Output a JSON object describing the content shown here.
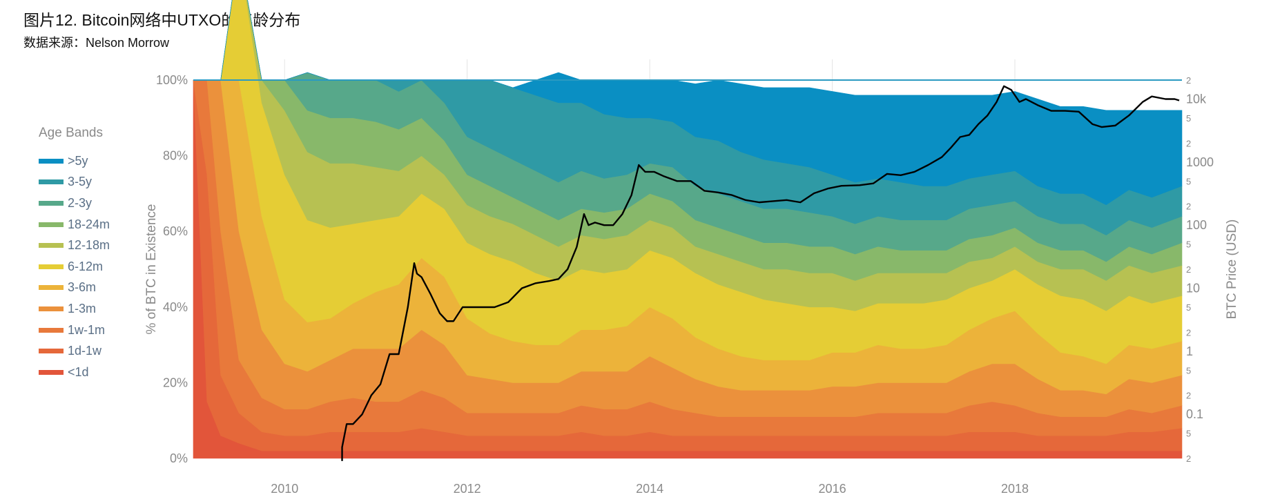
{
  "header": {
    "title": "图片12. Bitcoin网络中UTXO的年龄分布",
    "source": "数据来源：Nelson Morrow"
  },
  "chart_data": {
    "type": "area",
    "stacked": true,
    "x_unit": "year",
    "xlim": [
      2009.0,
      2019.83
    ],
    "ylim": [
      0,
      100
    ],
    "ylabel": "% of BTC in Existence",
    "y2label": "BTC Price (USD)",
    "y2_scale": "log",
    "y2lim": [
      0.02,
      20000
    ],
    "x_ticks": [
      "2010",
      "2012",
      "2014",
      "2016",
      "2018"
    ],
    "x_tick_values": [
      2010,
      2012,
      2014,
      2016,
      2018
    ],
    "y_ticks": [
      "0%",
      "20%",
      "40%",
      "60%",
      "80%",
      "100%"
    ],
    "y_tick_values": [
      0,
      20,
      40,
      60,
      80,
      100
    ],
    "y2_major_ticks": [
      "0.1",
      "1",
      "10",
      "100",
      "1000",
      "10k"
    ],
    "y2_major_values": [
      0.1,
      1,
      10,
      100,
      1000,
      10000
    ],
    "y2_minor_ticks": [
      "2",
      "5",
      "2",
      "5",
      "2",
      "5",
      "2",
      "5",
      "2",
      "5",
      "2",
      "5",
      "2"
    ],
    "y2_minor_values": [
      0.02,
      0.05,
      0.2,
      0.5,
      2,
      5,
      20,
      50,
      200,
      500,
      2000,
      5000,
      20000
    ],
    "legend_title": "Age Bands",
    "legend_position": "left",
    "x": [
      2009.0,
      2009.15,
      2009.3,
      2009.5,
      2009.75,
      2010.0,
      2010.25,
      2010.5,
      2010.75,
      2011.0,
      2011.25,
      2011.5,
      2011.75,
      2012.0,
      2012.25,
      2012.5,
      2012.75,
      2013.0,
      2013.25,
      2013.5,
      2013.75,
      2014.0,
      2014.25,
      2014.5,
      2014.75,
      2015.0,
      2015.25,
      2015.5,
      2015.75,
      2016.0,
      2016.25,
      2016.5,
      2016.75,
      2017.0,
      2017.25,
      2017.5,
      2017.75,
      2018.0,
      2018.25,
      2018.5,
      2018.75,
      2019.0,
      2019.25,
      2019.5,
      2019.83
    ],
    "series": [
      {
        "name": "<1d",
        "color": "#e2553a",
        "values": [
          100,
          15,
          6,
          4,
          2,
          2,
          2,
          2,
          2,
          2,
          2,
          2,
          2,
          2,
          2,
          2,
          2,
          2,
          2,
          2,
          2,
          2,
          2,
          2,
          2,
          2,
          2,
          2,
          2,
          2,
          2,
          2,
          2,
          2,
          2,
          2,
          2,
          2,
          2,
          2,
          2,
          2,
          2,
          2,
          2
        ]
      },
      {
        "name": "1d-1w",
        "color": "#e5683a",
        "values": [
          0,
          60,
          16,
          8,
          5,
          4,
          4,
          5,
          5,
          5,
          5,
          6,
          5,
          4,
          4,
          4,
          4,
          4,
          5,
          4,
          4,
          5,
          4,
          4,
          4,
          4,
          4,
          4,
          4,
          4,
          4,
          4,
          4,
          4,
          4,
          5,
          5,
          5,
          4,
          4,
          4,
          4,
          5,
          5,
          6
        ]
      },
      {
        "name": "1w-1m",
        "color": "#e8793b",
        "values": [
          0,
          25,
          38,
          14,
          9,
          7,
          7,
          8,
          9,
          8,
          8,
          10,
          9,
          6,
          6,
          6,
          6,
          6,
          7,
          7,
          7,
          8,
          7,
          6,
          5,
          5,
          5,
          5,
          5,
          5,
          5,
          6,
          6,
          6,
          6,
          7,
          8,
          7,
          6,
          5,
          5,
          5,
          6,
          5,
          6
        ]
      },
      {
        "name": "1-3m",
        "color": "#eb913c",
        "values": [
          0,
          0,
          40,
          34,
          18,
          12,
          10,
          11,
          13,
          14,
          14,
          16,
          14,
          10,
          9,
          8,
          8,
          8,
          9,
          10,
          10,
          12,
          11,
          9,
          8,
          7,
          7,
          7,
          7,
          8,
          8,
          8,
          8,
          8,
          8,
          9,
          10,
          11,
          9,
          7,
          7,
          6,
          8,
          8,
          8
        ]
      },
      {
        "name": "3-6m",
        "color": "#ecb33a",
        "values": [
          0,
          0,
          0,
          40,
          30,
          17,
          13,
          11,
          12,
          15,
          17,
          19,
          18,
          15,
          12,
          11,
          10,
          10,
          11,
          11,
          12,
          13,
          13,
          11,
          10,
          9,
          8,
          8,
          8,
          9,
          9,
          10,
          9,
          9,
          10,
          11,
          12,
          14,
          12,
          10,
          9,
          8,
          9,
          9,
          9
        ]
      },
      {
        "name": "6-12m",
        "color": "#e5cd35",
        "values": [
          0,
          0,
          0,
          34,
          30,
          33,
          27,
          24,
          21,
          19,
          18,
          17,
          18,
          20,
          21,
          21,
          19,
          17,
          16,
          15,
          15,
          15,
          16,
          17,
          17,
          17,
          16,
          15,
          14,
          12,
          11,
          11,
          12,
          12,
          12,
          11,
          10,
          11,
          13,
          15,
          15,
          14,
          13,
          12,
          12
        ]
      },
      {
        "name": "12-18m",
        "color": "#b7c152",
        "values": [
          0,
          0,
          0,
          0,
          6,
          17,
          18,
          17,
          16,
          14,
          12,
          10,
          9,
          10,
          10,
          10,
          10,
          9,
          9,
          9,
          9,
          8,
          8,
          7,
          8,
          8,
          8,
          9,
          9,
          9,
          8,
          8,
          8,
          8,
          7,
          7,
          6,
          6,
          6,
          7,
          8,
          8,
          8,
          8,
          8
        ]
      },
      {
        "name": "18-24m",
        "color": "#88b86a",
        "values": [
          0,
          0,
          0,
          0,
          0,
          8,
          11,
          12,
          12,
          12,
          11,
          10,
          9,
          8,
          8,
          7,
          7,
          7,
          7,
          7,
          7,
          7,
          7,
          7,
          7,
          7,
          7,
          7,
          7,
          7,
          7,
          7,
          6,
          6,
          6,
          6,
          6,
          5,
          5,
          5,
          5,
          5,
          5,
          5,
          6
        ]
      },
      {
        "name": "2-3y",
        "color": "#57a88a",
        "values": [
          0,
          0,
          0,
          0,
          0,
          0,
          10,
          10,
          10,
          11,
          10,
          10,
          10,
          10,
          10,
          10,
          10,
          10,
          10,
          9,
          9,
          8,
          9,
          9,
          9,
          9,
          9,
          9,
          9,
          8,
          8,
          8,
          8,
          8,
          8,
          8,
          8,
          7,
          7,
          7,
          7,
          7,
          7,
          7,
          7
        ]
      },
      {
        "name": "3-5y",
        "color": "#2f9aa5",
        "values": [
          0,
          0,
          0,
          0,
          0,
          0,
          0,
          0,
          0,
          0,
          3,
          0,
          6,
          15,
          18,
          19,
          20,
          21,
          18,
          17,
          15,
          12,
          12,
          13,
          14,
          13,
          13,
          12,
          12,
          11,
          11,
          10,
          10,
          9,
          9,
          8,
          8,
          8,
          8,
          8,
          8,
          8,
          8,
          8,
          8
        ]
      },
      {
        "name": ">5y",
        "color": "#0a8fc3",
        "values": [
          0,
          0,
          0,
          0,
          0,
          0,
          0,
          0,
          0,
          0,
          0,
          0,
          0,
          0,
          0,
          0,
          4,
          8,
          6,
          9,
          10,
          10,
          11,
          14,
          16,
          18,
          19,
          20,
          21,
          22,
          23,
          22,
          23,
          24,
          24,
          22,
          21,
          21,
          23,
          23,
          23,
          25,
          21,
          23,
          20
        ]
      }
    ],
    "price_line": {
      "color": "#000000",
      "x": [
        2010.63,
        2010.68,
        2010.75,
        2010.85,
        2010.95,
        2011.05,
        2011.15,
        2011.25,
        2011.35,
        2011.42,
        2011.45,
        2011.5,
        2011.6,
        2011.7,
        2011.78,
        2011.85,
        2011.95,
        2012.02,
        2012.15,
        2012.3,
        2012.45,
        2012.6,
        2012.75,
        2012.9,
        2013.0,
        2013.1,
        2013.2,
        2013.28,
        2013.33,
        2013.4,
        2013.5,
        2013.6,
        2013.7,
        2013.8,
        2013.88,
        2013.95,
        2014.05,
        2014.15,
        2014.3,
        2014.45,
        2014.6,
        2014.75,
        2014.9,
        2015.05,
        2015.2,
        2015.35,
        2015.5,
        2015.65,
        2015.8,
        2015.95,
        2016.1,
        2016.3,
        2016.45,
        2016.6,
        2016.75,
        2016.9,
        2017.05,
        2017.2,
        2017.3,
        2017.4,
        2017.5,
        2017.6,
        2017.7,
        2017.8,
        2017.88,
        2017.96,
        2018.05,
        2018.12,
        2018.25,
        2018.4,
        2018.55,
        2018.7,
        2018.85,
        2018.95,
        2019.1,
        2019.25,
        2019.4,
        2019.5,
        2019.65,
        2019.75,
        2019.8
      ],
      "y": [
        0.03,
        0.07,
        0.07,
        0.1,
        0.2,
        0.3,
        0.9,
        0.9,
        5,
        25,
        17,
        15,
        8,
        4,
        3,
        3,
        5,
        5,
        5,
        5,
        6,
        10,
        12,
        13,
        14,
        20,
        45,
        150,
        100,
        110,
        100,
        100,
        150,
        300,
        900,
        700,
        700,
        600,
        500,
        500,
        350,
        330,
        300,
        250,
        230,
        240,
        250,
        230,
        320,
        380,
        420,
        430,
        460,
        650,
        620,
        700,
        900,
        1200,
        1700,
        2500,
        2700,
        4000,
        5500,
        9000,
        16000,
        14000,
        9000,
        10000,
        8000,
        6500,
        6500,
        6300,
        4000,
        3600,
        3800,
        5500,
        9000,
        11000,
        10000,
        10000,
        9500
      ]
    }
  }
}
